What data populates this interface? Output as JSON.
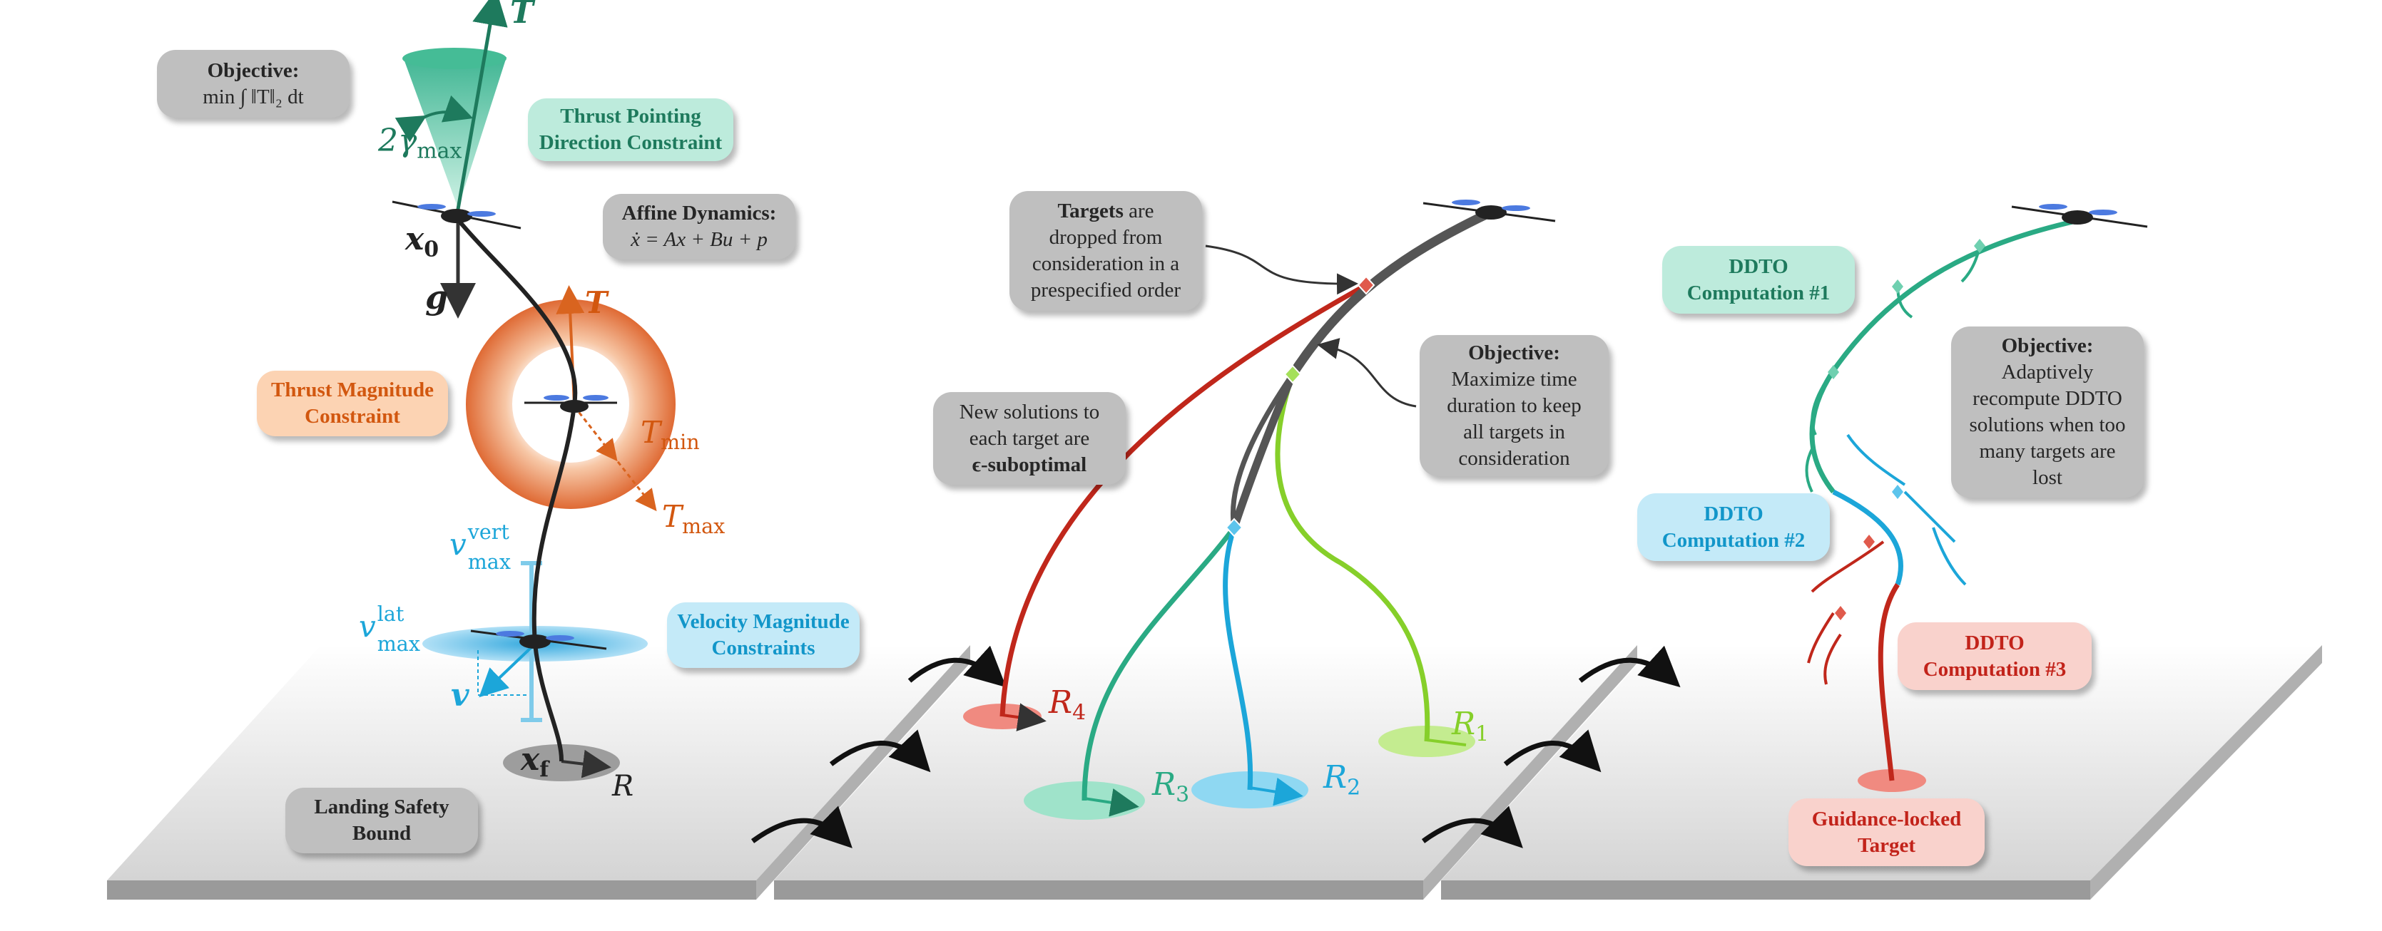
{
  "panel1": {
    "objective": {
      "title": "Objective:",
      "formula": "min ∫ ‖T‖₂ dt"
    },
    "thrust_pointing": {
      "line1": "Thrust Pointing",
      "line2": "Direction Constraint"
    },
    "affine_dynamics": {
      "title": "Affine Dynamics:",
      "formula": "ẋ = Ax + Bu + p"
    },
    "thrust_magnitude": {
      "line1": "Thrust Magnitude",
      "line2": "Constraint"
    },
    "velocity_magnitude": {
      "line1": "Velocity Magnitude",
      "line2": "Constraints"
    },
    "landing_safety": {
      "line1": "Landing Safety",
      "line2": "Bound"
    },
    "symbols": {
      "T_top": "T",
      "gamma": "2γ",
      "gamma_sub": "max",
      "x0": "x",
      "x0_sub": "0",
      "g": "g",
      "T_ring": "T",
      "Tmin": "T",
      "Tmin_sub": "min",
      "Tmax": "T",
      "Tmax_sub": "max",
      "vvert": "v",
      "vvert_sup": "vert",
      "vvert_sub": "max",
      "vlat": "v",
      "vlat_sup": "lat",
      "vlat_sub": "max",
      "v": "v",
      "xf": "x",
      "xf_sub": "f",
      "R": "R"
    }
  },
  "panel2": {
    "targets_box": {
      "bold": "Targets",
      "rest1": " are",
      "line2": "dropped from",
      "line3": "consideration in a",
      "line4": "prespecified order"
    },
    "new_solutions": {
      "line1": "New solutions to",
      "line2": "each target are",
      "line3": "ϵ-suboptimal"
    },
    "objective": {
      "title": "Objective:",
      "line2": "Maximize time",
      "line3": "duration to keep",
      "line4": "all targets in",
      "line5": "consideration"
    },
    "targets": [
      {
        "name": "R",
        "sub": "4",
        "color": "#c0271b"
      },
      {
        "name": "R",
        "sub": "3",
        "color": "#2aaa84"
      },
      {
        "name": "R",
        "sub": "2",
        "color": "#1ca6d9"
      },
      {
        "name": "R",
        "sub": "1",
        "color": "#86cf2a"
      }
    ]
  },
  "panel3": {
    "ddto1": {
      "line1": "DDTO",
      "line2": "Computation #1"
    },
    "ddto2": {
      "line1": "DDTO",
      "line2": "Computation #2"
    },
    "ddto3": {
      "line1": "DDTO",
      "line2": "Computation #3"
    },
    "objective": {
      "title": "Objective:",
      "line2": "Adaptively",
      "line3": "recompute DDTO",
      "line4": "solutions when too",
      "line5": "many targets are",
      "line6": "lost"
    },
    "locked": {
      "line1": "Guidance-locked",
      "line2": "Target"
    }
  },
  "colors": {
    "grey_box": "#bfbfbf",
    "teal": "#2aaa84",
    "orange": "#e06a2e",
    "cyan": "#1ca6d9",
    "red": "#c0271b",
    "green": "#86cf2a",
    "dark_path": "#555555"
  }
}
